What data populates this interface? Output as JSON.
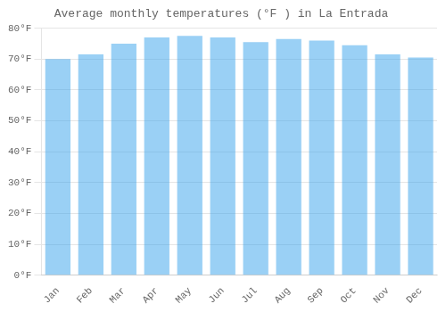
{
  "chart_data": {
    "type": "bar",
    "title": "Average monthly temperatures (°F ) in La Entrada",
    "categories": [
      "Jan",
      "Feb",
      "Mar",
      "Apr",
      "May",
      "Jun",
      "Jul",
      "Aug",
      "Sep",
      "Oct",
      "Nov",
      "Dec"
    ],
    "values": [
      70,
      71.5,
      75,
      77,
      77.5,
      77,
      75.5,
      76.5,
      76,
      74.5,
      71.5,
      70.5
    ],
    "ylim": [
      0,
      80
    ],
    "yticks": [
      {
        "value": 0,
        "label": "0°F"
      },
      {
        "value": 10,
        "label": "10°F"
      },
      {
        "value": 20,
        "label": "20°F"
      },
      {
        "value": 30,
        "label": "30°F"
      },
      {
        "value": 40,
        "label": "40°F"
      },
      {
        "value": 50,
        "label": "50°F"
      },
      {
        "value": 60,
        "label": "60°F"
      },
      {
        "value": 70,
        "label": "70°F"
      },
      {
        "value": 80,
        "label": "80°F"
      }
    ],
    "grid": true
  }
}
